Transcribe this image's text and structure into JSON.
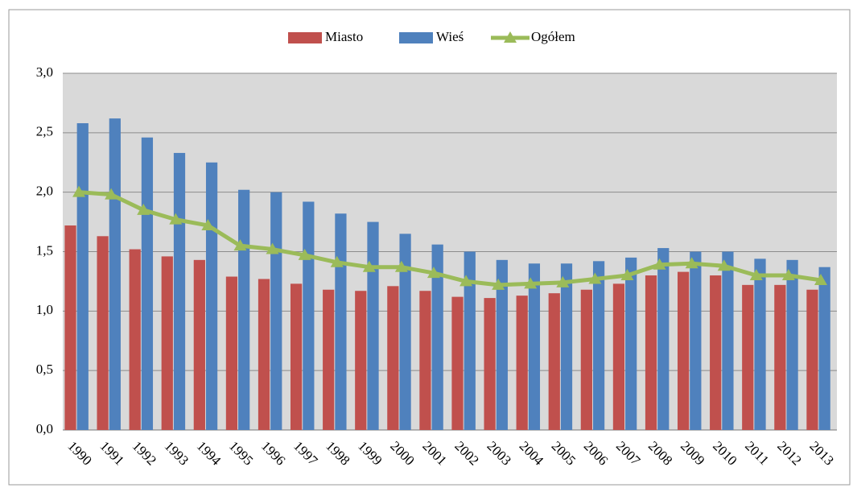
{
  "chart_data": {
    "type": "bar_line",
    "categories": [
      "1990",
      "1991",
      "1992",
      "1993",
      "1994",
      "1995",
      "1996",
      "1997",
      "1998",
      "1999",
      "2000",
      "2001",
      "2002",
      "2003",
      "2004",
      "2005",
      "2006",
      "2007",
      "2008",
      "2009",
      "2010",
      "2011",
      "2012",
      "2013"
    ],
    "series": [
      {
        "name": "Miasto",
        "color": "#c0504d",
        "kind": "bar",
        "values": [
          1.72,
          1.63,
          1.52,
          1.46,
          1.43,
          1.29,
          1.27,
          1.23,
          1.18,
          1.17,
          1.21,
          1.17,
          1.12,
          1.11,
          1.13,
          1.15,
          1.18,
          1.23,
          1.3,
          1.33,
          1.3,
          1.22,
          1.22,
          1.18
        ]
      },
      {
        "name": "Wieś",
        "color": "#4f81bd",
        "kind": "bar",
        "values": [
          2.58,
          2.62,
          2.46,
          2.33,
          2.25,
          2.02,
          2.0,
          1.92,
          1.82,
          1.75,
          1.65,
          1.56,
          1.5,
          1.43,
          1.4,
          1.4,
          1.42,
          1.45,
          1.53,
          1.5,
          1.5,
          1.44,
          1.43,
          1.37
        ]
      },
      {
        "name": "Ogółem",
        "color": "#9bbb59",
        "kind": "line",
        "values": [
          2.0,
          1.98,
          1.85,
          1.77,
          1.72,
          1.55,
          1.52,
          1.47,
          1.41,
          1.37,
          1.37,
          1.32,
          1.25,
          1.22,
          1.23,
          1.24,
          1.27,
          1.3,
          1.39,
          1.4,
          1.38,
          1.3,
          1.3,
          1.26
        ]
      }
    ],
    "ylim": [
      0,
      3
    ],
    "yticks": [
      {
        "value": 0,
        "label": "0,0"
      },
      {
        "value": 0.5,
        "label": "0,5"
      },
      {
        "value": 1,
        "label": "1,0"
      },
      {
        "value": 1.5,
        "label": "1,5"
      },
      {
        "value": 2,
        "label": "2,0"
      },
      {
        "value": 2.5,
        "label": "2,5"
      },
      {
        "value": 3,
        "label": "3,0"
      }
    ],
    "grid": true,
    "legend": "top"
  }
}
